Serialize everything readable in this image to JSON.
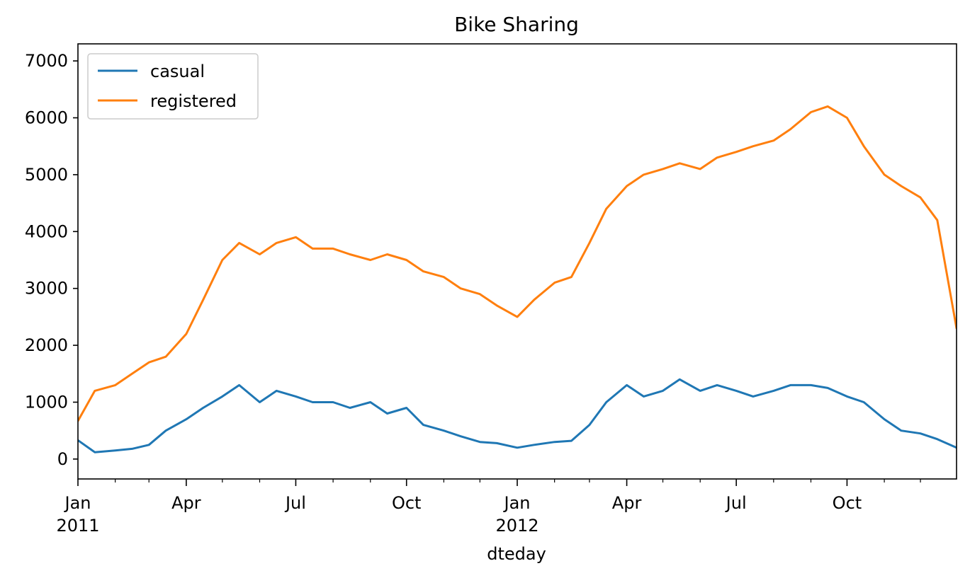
{
  "chart_data": {
    "type": "line",
    "title": "Bike Sharing",
    "xlabel": "dteday",
    "ylabel": "",
    "x_range": [
      "2011-01-01",
      "2012-12-31"
    ],
    "ylim": [
      -350,
      7300
    ],
    "yticks": [
      0,
      1000,
      2000,
      3000,
      4000,
      5000,
      6000,
      7000
    ],
    "xticks": [
      {
        "date": "2011-01-01",
        "label": "Jan",
        "sublabel": "2011"
      },
      {
        "date": "2011-04-01",
        "label": "Apr",
        "sublabel": ""
      },
      {
        "date": "2011-07-01",
        "label": "Jul",
        "sublabel": ""
      },
      {
        "date": "2011-10-01",
        "label": "Oct",
        "sublabel": ""
      },
      {
        "date": "2012-01-01",
        "label": "Jan",
        "sublabel": "2012"
      },
      {
        "date": "2012-04-01",
        "label": "Apr",
        "sublabel": ""
      },
      {
        "date": "2012-07-01",
        "label": "Jul",
        "sublabel": ""
      },
      {
        "date": "2012-10-01",
        "label": "Oct",
        "sublabel": ""
      }
    ],
    "legend": {
      "position": "upper-left",
      "entries": [
        "casual",
        "registered"
      ]
    },
    "x": [
      "2011-01-01",
      "2011-01-15",
      "2011-02-01",
      "2011-02-15",
      "2011-03-01",
      "2011-03-15",
      "2011-04-01",
      "2011-04-15",
      "2011-05-01",
      "2011-05-15",
      "2011-06-01",
      "2011-06-15",
      "2011-07-01",
      "2011-07-15",
      "2011-08-01",
      "2011-08-15",
      "2011-09-01",
      "2011-09-15",
      "2011-10-01",
      "2011-10-15",
      "2011-11-01",
      "2011-11-15",
      "2011-12-01",
      "2011-12-15",
      "2012-01-01",
      "2012-01-15",
      "2012-02-01",
      "2012-02-15",
      "2012-03-01",
      "2012-03-15",
      "2012-04-01",
      "2012-04-15",
      "2012-05-01",
      "2012-05-15",
      "2012-06-01",
      "2012-06-15",
      "2012-07-01",
      "2012-07-15",
      "2012-08-01",
      "2012-08-15",
      "2012-09-01",
      "2012-09-15",
      "2012-10-01",
      "2012-10-15",
      "2012-11-01",
      "2012-11-15",
      "2012-12-01",
      "2012-12-15",
      "2012-12-31"
    ],
    "series": [
      {
        "name": "casual",
        "color": "#1f77b4",
        "values": [
          330,
          120,
          150,
          180,
          250,
          500,
          700,
          900,
          1100,
          1300,
          1000,
          1200,
          1100,
          1000,
          1000,
          900,
          1000,
          800,
          900,
          600,
          500,
          400,
          300,
          280,
          200,
          250,
          300,
          320,
          600,
          1000,
          1300,
          1100,
          1200,
          1400,
          1200,
          1300,
          1200,
          1100,
          1200,
          1300,
          1300,
          1250,
          1100,
          1000,
          700,
          500,
          450,
          350,
          200
        ]
      },
      {
        "name": "registered",
        "color": "#ff7f0e",
        "values": [
          670,
          1200,
          1300,
          1500,
          1700,
          1800,
          2200,
          2800,
          3500,
          3800,
          3600,
          3800,
          3900,
          3700,
          3700,
          3600,
          3500,
          3600,
          3500,
          3300,
          3200,
          3000,
          2900,
          2700,
          2500,
          2800,
          3100,
          3200,
          3800,
          4400,
          4800,
          5000,
          5100,
          5200,
          5100,
          5300,
          5400,
          5500,
          5600,
          5800,
          6100,
          6200,
          6000,
          5500,
          5000,
          4800,
          4600,
          4200,
          2300
        ]
      }
    ]
  }
}
